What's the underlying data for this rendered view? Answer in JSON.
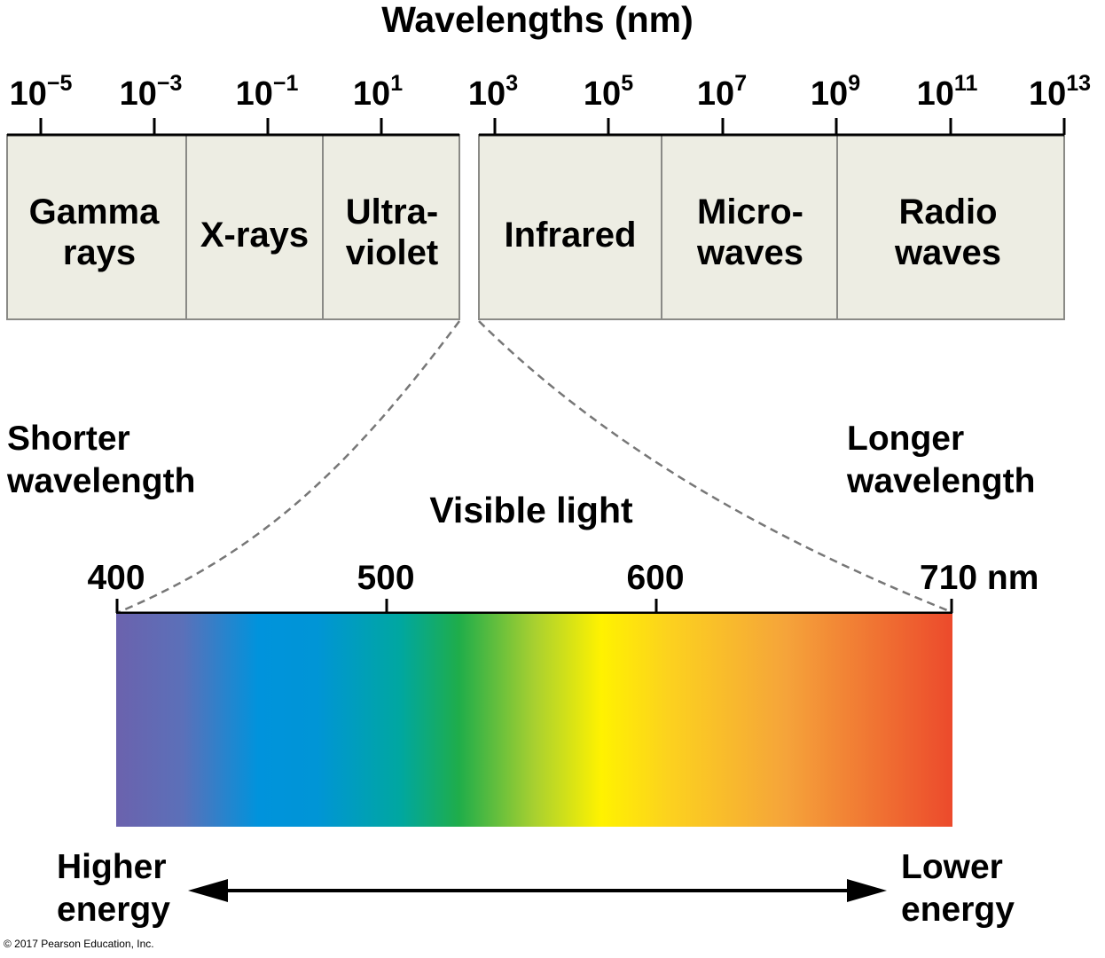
{
  "title": "Wavelengths (nm)",
  "scale_ticks": [
    {
      "base": "10",
      "exp": "−5"
    },
    {
      "base": "10",
      "exp": "−3"
    },
    {
      "base": "10",
      "exp": "−1"
    },
    {
      "base": "10",
      "exp": "1"
    },
    {
      "base": "10",
      "exp": "3"
    },
    {
      "base": "10",
      "exp": "5"
    },
    {
      "base": "10",
      "exp": "7"
    },
    {
      "base": "10",
      "exp": "9"
    },
    {
      "base": "10",
      "exp": "11"
    },
    {
      "base": "10",
      "exp": "13"
    }
  ],
  "bands": [
    {
      "line1": "Gamma",
      "line2": "rays"
    },
    {
      "line1": "X-rays",
      "line2": ""
    },
    {
      "line1": "Ultra-",
      "line2": "violet"
    },
    {
      "line1": "Infrared",
      "line2": ""
    },
    {
      "line1": "Micro-",
      "line2": "waves"
    },
    {
      "line1": "Radio",
      "line2": "waves"
    }
  ],
  "shorter": {
    "line1": "Shorter",
    "line2": "wavelength"
  },
  "longer": {
    "line1": "Longer",
    "line2": "wavelength"
  },
  "visible": {
    "title": "Visible light",
    "ticks": [
      "400",
      "500",
      "600",
      "710 nm"
    ],
    "colors": {
      "violet": "#6b62ad",
      "blue": "#0093dc",
      "green": "#1fad4a",
      "yellow": "#fff200",
      "orange": "#f5a43a",
      "red": "#ec4a2c"
    }
  },
  "energy": {
    "higher": {
      "line1": "Higher",
      "line2": "energy"
    },
    "lower": {
      "line1": "Lower",
      "line2": "energy"
    }
  },
  "copyright": "© 2017 Pearson Education, Inc."
}
